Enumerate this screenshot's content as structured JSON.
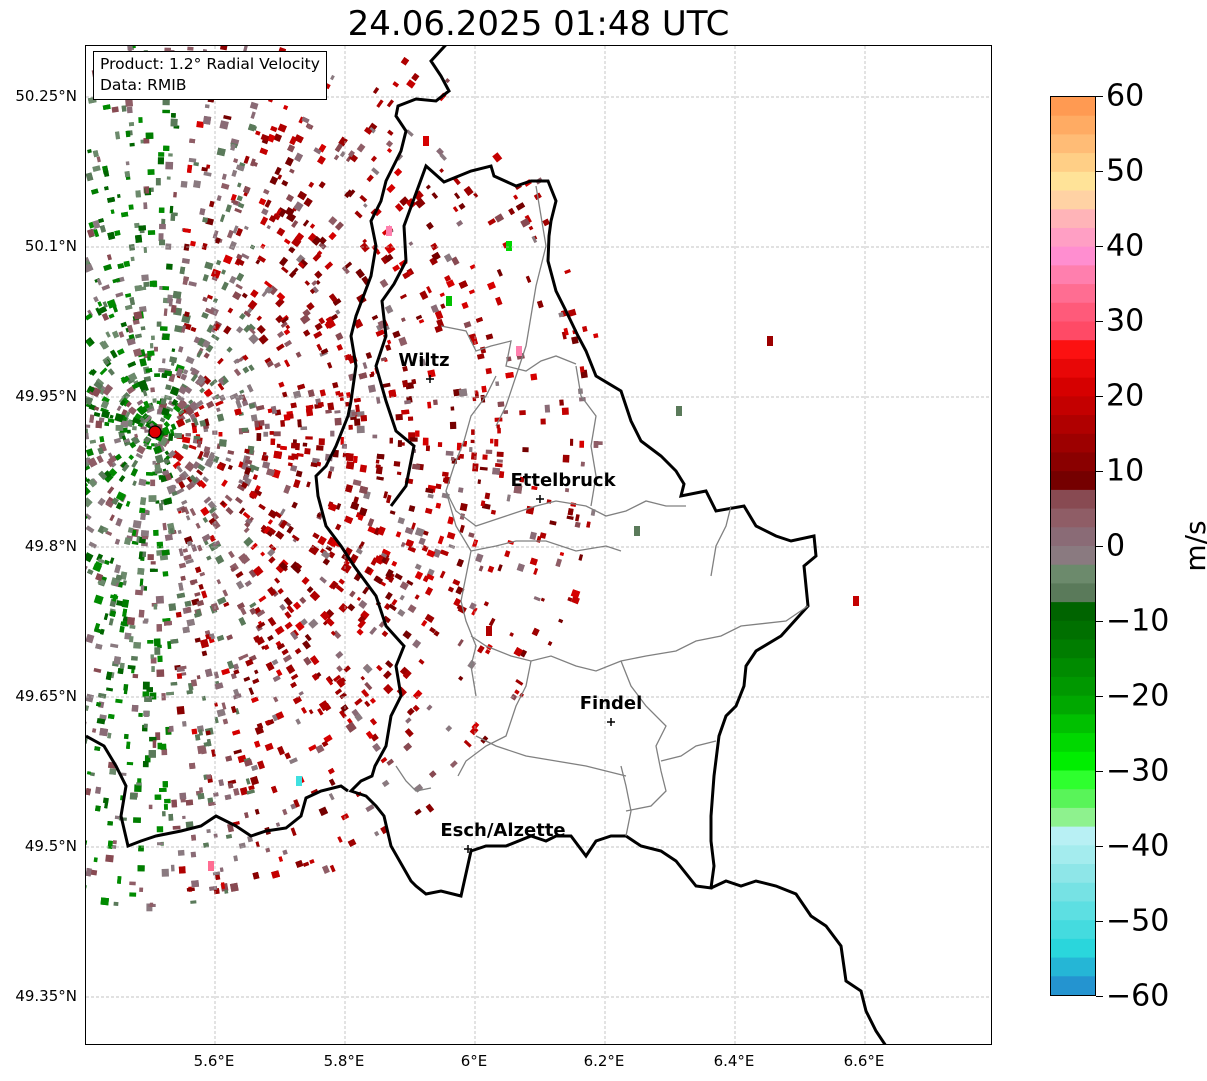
{
  "title": "24.06.2025 01:48 UTC",
  "info_box": {
    "product": "Product: 1.2° Radial Velocity",
    "data_source": "Data: RMIB"
  },
  "map": {
    "lat_ticks": [
      "50.25°N",
      "50.1°N",
      "49.95°N",
      "49.8°N",
      "49.65°N",
      "49.5°N",
      "49.35°N"
    ],
    "lon_ticks": [
      "5.6°E",
      "5.8°E",
      "6°E",
      "6.2°E",
      "6.4°E",
      "6.6°E"
    ],
    "cities": [
      {
        "name": "Wiltz"
      },
      {
        "name": "Ettelbruck"
      },
      {
        "name": "Findel"
      },
      {
        "name": "Esch/Alzette"
      }
    ],
    "radar_site_marker": "radar-site-icon"
  },
  "colorbar": {
    "unit": "m/s",
    "min": -60,
    "max": 60,
    "ticks": [
      "60",
      "50",
      "40",
      "30",
      "20",
      "10",
      "0",
      "−10",
      "−20",
      "−30",
      "−40",
      "−50",
      "−60"
    ],
    "colors_top_to_bottom": [
      "#ff9a52",
      "#ffab63",
      "#ffbc76",
      "#ffcf86",
      "#ffe398",
      "#ffd2a4",
      "#ffb4b8",
      "#ff9fc4",
      "#ff8ed0",
      "#ff7fae",
      "#ff6d92",
      "#ff5a7a",
      "#ff4a66",
      "#fc1111",
      "#e80707",
      "#d60000",
      "#c40000",
      "#b00000",
      "#9d0000",
      "#8a0000",
      "#750000",
      "#884a52",
      "#8f5d66",
      "#8a6b76",
      "#8a7a80",
      "#6c8a6c",
      "#5a7a5a",
      "#006400",
      "#007000",
      "#007d00",
      "#008b00",
      "#009800",
      "#00a800",
      "#00c000",
      "#00d800",
      "#00ee00",
      "#2eff2e",
      "#59f459",
      "#8ef28e",
      "#b8f0f4",
      "#a4ecee",
      "#8ee6e8",
      "#76e2e4",
      "#5ddfe2",
      "#44dbdf",
      "#2ad6dc",
      "#25b6d6",
      "#2494d0"
    ]
  }
}
